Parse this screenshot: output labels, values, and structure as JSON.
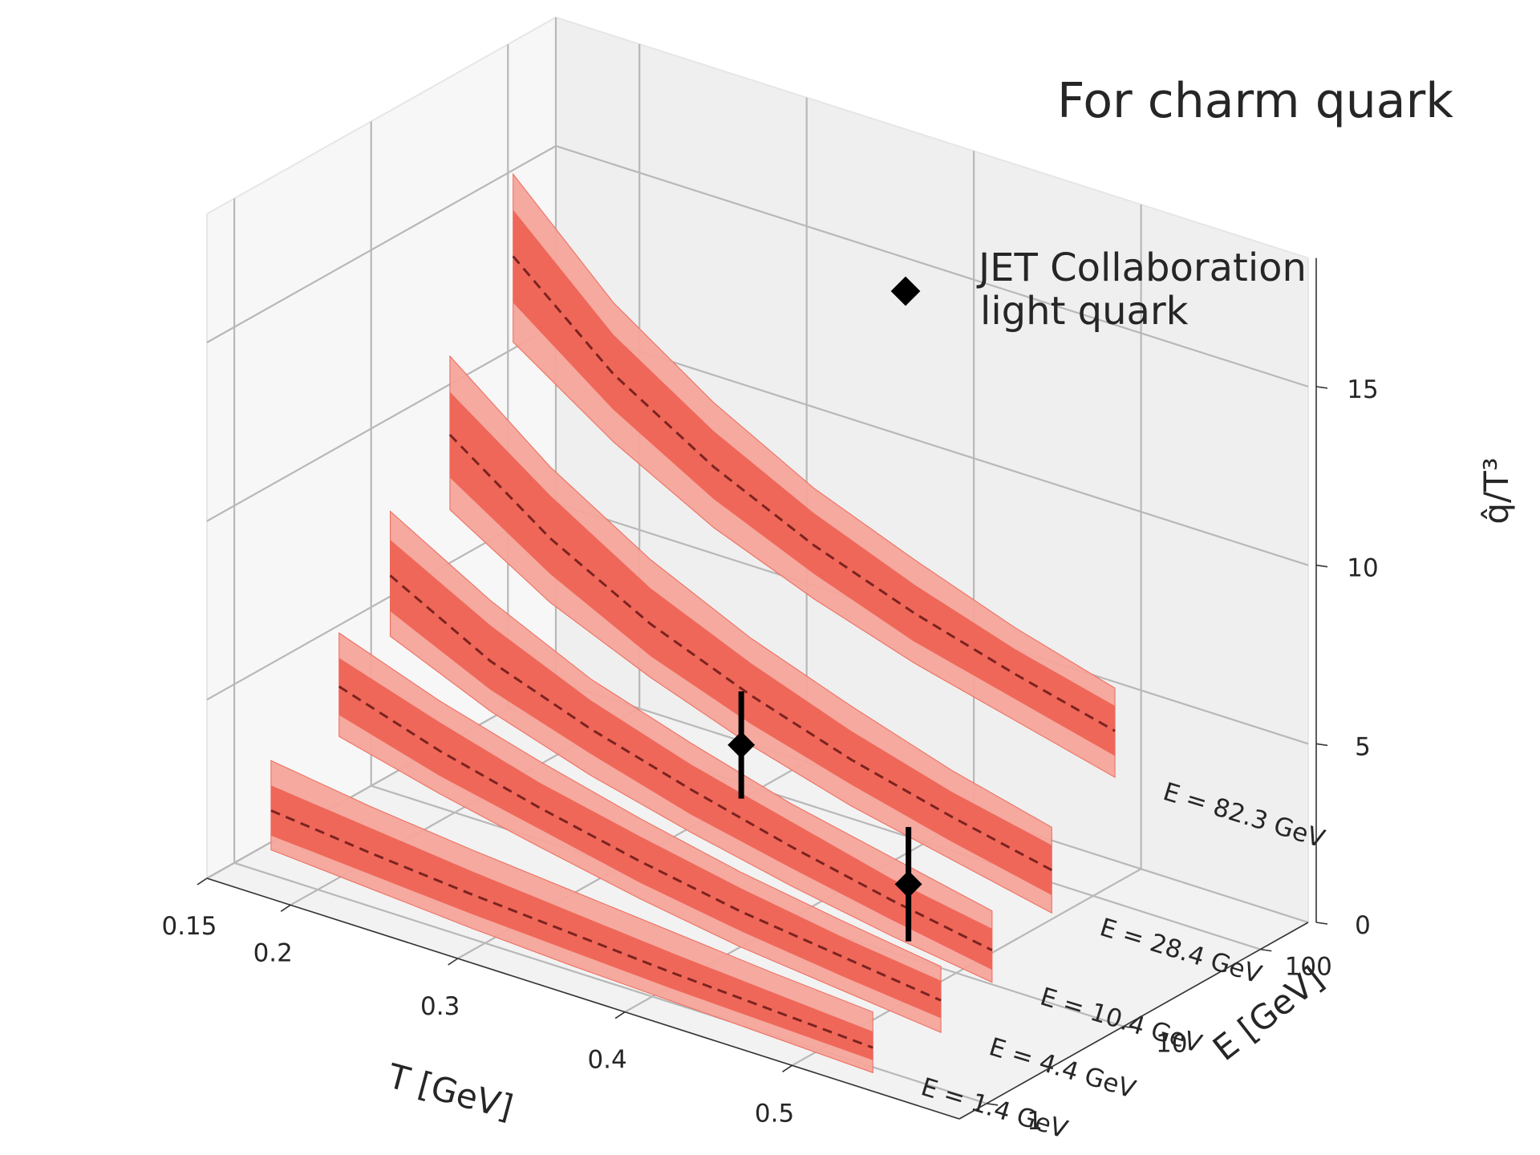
{
  "chart_data": {
    "type": "3d-band",
    "title": "For charm quark",
    "xlabel": "T [GeV]",
    "ylabel": "E [GeV]",
    "zlabel": "q̂/T³",
    "x_ticks": [
      "0.15",
      "0.2",
      "0.3",
      "0.4",
      "0.5"
    ],
    "y_ticks": [
      "1",
      "10",
      "100"
    ],
    "z_ticks": [
      "0",
      "5",
      "10",
      "15"
    ],
    "y_scale": "log",
    "xlim": [
      0.15,
      0.6
    ],
    "zlim": [
      0,
      15
    ],
    "T": [
      0.16,
      0.22,
      0.28,
      0.34,
      0.4,
      0.46,
      0.52
    ],
    "series": [
      {
        "name": "E = 1.4 GeV",
        "E": 1.4,
        "mean": [
          1.3,
          1.0,
          0.75,
          0.55,
          0.35,
          0.2,
          0.05
        ],
        "inner_lo": [
          0.6,
          0.4,
          0.2,
          0.05,
          -0.1,
          -0.2,
          -0.3
        ],
        "inner_hi": [
          2.0,
          1.7,
          1.4,
          1.15,
          0.9,
          0.7,
          0.5
        ],
        "outer_lo": [
          0.2,
          0.0,
          -0.2,
          -0.35,
          -0.45,
          -0.55,
          -0.65
        ],
        "outer_hi": [
          2.7,
          2.3,
          2.0,
          1.75,
          1.5,
          1.25,
          1.05
        ]
      },
      {
        "name": "E = 4.4 GeV",
        "E": 4.4,
        "mean": [
          3.7,
          2.8,
          2.1,
          1.5,
          1.0,
          0.65,
          0.3
        ],
        "inner_lo": [
          2.9,
          2.1,
          1.5,
          0.9,
          0.45,
          0.1,
          -0.2
        ],
        "inner_hi": [
          4.5,
          3.6,
          2.8,
          2.2,
          1.65,
          1.2,
          0.85
        ],
        "outer_lo": [
          2.3,
          1.6,
          1.0,
          0.45,
          0.0,
          -0.3,
          -0.6
        ],
        "outer_hi": [
          5.2,
          4.2,
          3.4,
          2.7,
          2.1,
          1.65,
          1.25
        ]
      },
      {
        "name": "E = 10.4 GeV",
        "E": 10.4,
        "mean": [
          6.0,
          4.5,
          3.5,
          2.7,
          2.0,
          1.4,
          0.9
        ],
        "inner_lo": [
          5.0,
          3.7,
          2.8,
          2.0,
          1.4,
          0.85,
          0.35
        ],
        "inner_hi": [
          7.0,
          5.5,
          4.3,
          3.4,
          2.7,
          2.0,
          1.5
        ],
        "outer_lo": [
          4.3,
          3.1,
          2.2,
          1.5,
          0.9,
          0.4,
          0.0
        ],
        "outer_hi": [
          7.8,
          6.2,
          4.9,
          4.0,
          3.2,
          2.6,
          2.0
        ]
      },
      {
        "name": "E = 28.4 GeV",
        "E": 28.4,
        "mean": [
          9.0,
          7.0,
          5.5,
          4.4,
          3.5,
          2.8,
          2.2
        ],
        "inner_lo": [
          7.8,
          6.0,
          4.6,
          3.6,
          2.8,
          2.1,
          1.5
        ],
        "inner_hi": [
          10.2,
          8.2,
          6.5,
          5.3,
          4.3,
          3.5,
          2.9
        ],
        "outer_lo": [
          6.9,
          5.2,
          4.0,
          3.0,
          2.2,
          1.6,
          1.0
        ],
        "outer_hi": [
          11.2,
          9.0,
          7.3,
          6.0,
          5.0,
          4.1,
          3.4
        ]
      },
      {
        "name": "E = 82.3 GeV",
        "E": 82.3,
        "mean": [
          13.0,
          10.6,
          8.9,
          7.6,
          6.6,
          5.8,
          5.1
        ],
        "inner_lo": [
          11.7,
          9.6,
          8.0,
          6.8,
          5.8,
          5.1,
          4.4
        ],
        "inner_hi": [
          14.3,
          11.7,
          9.9,
          8.5,
          7.4,
          6.5,
          5.8
        ],
        "outer_lo": [
          10.6,
          8.7,
          7.2,
          6.1,
          5.2,
          4.5,
          3.8
        ],
        "outer_hi": [
          15.3,
          12.6,
          10.7,
          9.2,
          8.1,
          7.1,
          6.3
        ]
      }
    ],
    "points": {
      "name": "JET Collaboration\n light quark",
      "label_line1": "JET Collaboration",
      "label_line2": " light quark",
      "data": [
        {
          "T": 0.37,
          "E": 10.4,
          "z": 4.4,
          "zerr": 1.5
        },
        {
          "T": 0.47,
          "E": 10.4,
          "z": 2.0,
          "zerr": 1.6
        }
      ]
    },
    "colors": {
      "band_outer": "#f4a49a",
      "band_inner": "#ef6759",
      "mean_line": "#7a2320",
      "marker": "#000000",
      "grid": "#b0b0b0",
      "pane": "#f2f2f2"
    }
  }
}
